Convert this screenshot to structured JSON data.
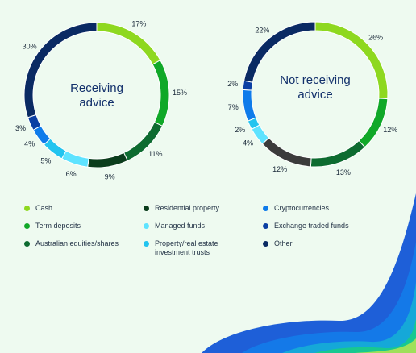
{
  "colors": {
    "Cash": "#8ed81f",
    "Term deposits": "#10a828",
    "Australian equities/shares": "#0d6b30",
    "Residential property": "#0b3d1c",
    "Managed funds": "#5ee3ff",
    "Property/real estate investment trusts": "#22c4ef",
    "Cryptocurrencies": "#0f7bea",
    "Exchange traded funds": "#0b3fa3",
    "Other": "#0a2a63",
    "Grey": "#3b3b3b"
  },
  "legend": [
    "Cash",
    "Term deposits",
    "Australian equities/shares",
    "Residential property",
    "Managed funds",
    "Property/real estate investment trusts",
    "Cryptocurrencies",
    "Exchange traded funds",
    "Other"
  ],
  "chart_data": [
    {
      "type": "pie",
      "title": "Receiving advice",
      "slices": [
        {
          "name": "Cash",
          "value": 17,
          "label": "17%"
        },
        {
          "name": "Term deposits",
          "value": 15,
          "label": "15%"
        },
        {
          "name": "Australian equities/shares",
          "value": 11,
          "label": "11%"
        },
        {
          "name": "Residential property",
          "value": 9,
          "label": "9%"
        },
        {
          "name": "Managed funds",
          "value": 6,
          "label": "6%"
        },
        {
          "name": "Property/real estate investment trusts",
          "value": 5,
          "label": "5%"
        },
        {
          "name": "Cryptocurrencies",
          "value": 4,
          "label": "4%"
        },
        {
          "name": "Exchange traded funds",
          "value": 3,
          "label": "3%"
        },
        {
          "name": "Other",
          "value": 30,
          "label": "30%"
        }
      ]
    },
    {
      "type": "pie",
      "title": "Not receiving advice",
      "slices": [
        {
          "name": "Cash",
          "value": 26,
          "label": "26%"
        },
        {
          "name": "Term deposits",
          "value": 12,
          "label": "12%"
        },
        {
          "name": "Australian equities/shares",
          "value": 13,
          "label": "13%"
        },
        {
          "name": "Grey",
          "value": 12,
          "label": "12%"
        },
        {
          "name": "Managed funds",
          "value": 4,
          "label": "4%"
        },
        {
          "name": "Property/real estate investment trusts",
          "value": 2,
          "label": "2%"
        },
        {
          "name": "Cryptocurrencies",
          "value": 7,
          "label": "7%"
        },
        {
          "name": "Exchange traded funds",
          "value": 2,
          "label": "2%"
        },
        {
          "name": "Other",
          "value": 22,
          "label": "22%"
        }
      ]
    }
  ]
}
